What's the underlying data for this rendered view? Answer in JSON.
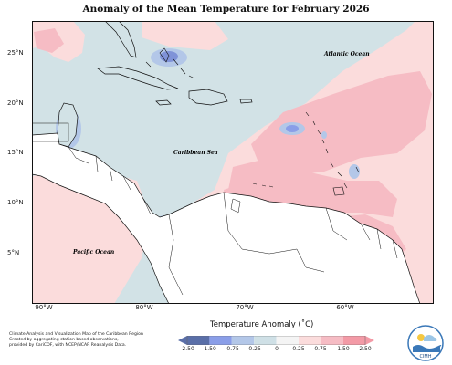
{
  "title": "Anomaly of the Mean Temperature for February 2026",
  "latitude_labels": [
    "25°N",
    "20°N",
    "15°N",
    "10°N",
    "5°N"
  ],
  "longitude_labels": [
    "90°W",
    "80°W",
    "70°W",
    "60°W"
  ],
  "regions": {
    "atlantic": "Atlantic Ocean",
    "caribbean": "Caribbean Sea",
    "pacific": "Pacific Ocean"
  },
  "footnote": {
    "line1": "Climate Analysis and Visualization Map of the Caribbean Region",
    "line2": "Created by aggregating station based observations,",
    "line3": "provided by CariCOF, with NCEP/NCAR Reanalysis Data."
  },
  "colorbar": {
    "title": "Temperature Anomaly (˚C)",
    "labels": [
      "-2.50",
      "-1.50",
      "-0.75",
      "-0.25",
      "0",
      "0.25",
      "0.75",
      "1.50",
      "2.50"
    ],
    "colors": [
      "#5a6fa8",
      "#8a9ee8",
      "#b3c7e8",
      "#cfe0e6",
      "#f4f4f4",
      "#fbdcdc",
      "#f6bcc4",
      "#f39aa6"
    ]
  },
  "logo": {
    "text": "CIMH"
  },
  "palette": {
    "ocean_neutral": "#d2e2e6",
    "warm_light": "#fbdcdc",
    "warm_mid": "#f6bcc4",
    "warm_strong": "#f39aa6",
    "cool_mid": "#b3c7e8",
    "cool_strong": "#7f92d8",
    "land_neutral": "#ffffff"
  }
}
